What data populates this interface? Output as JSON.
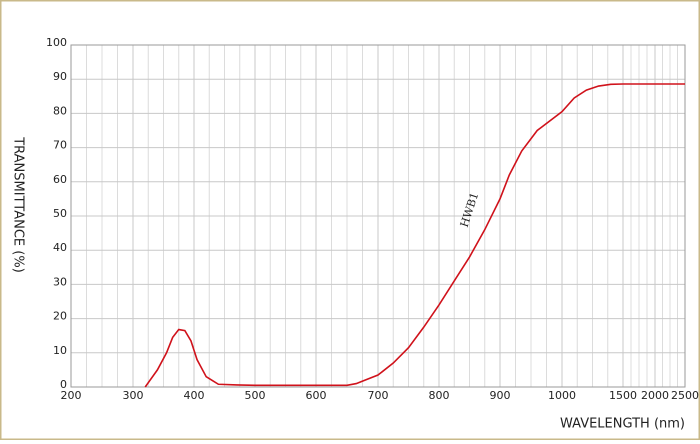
{
  "chart_data": {
    "type": "line",
    "x_label": "WAVELENGTH (nm)",
    "y_label": "TRANSMITTANCE  (%)",
    "annotation": "HWB1",
    "xlim": [
      200,
      2500
    ],
    "ylim": [
      0,
      100
    ],
    "xticks": [
      200,
      300,
      400,
      500,
      600,
      700,
      800,
      900,
      1000,
      1500,
      2000,
      2500
    ],
    "yticks": [
      0,
      10,
      20,
      30,
      40,
      50,
      60,
      70,
      80,
      90,
      100
    ],
    "grid": true,
    "series": [
      {
        "name": "HWB1",
        "color": "#d0121b",
        "x": [
          320,
          340,
          355,
          365,
          375,
          385,
          395,
          405,
          420,
          440,
          470,
          500,
          600,
          650,
          665,
          700,
          725,
          750,
          775,
          800,
          825,
          850,
          875,
          900,
          915,
          935,
          960,
          1000,
          1100,
          1200,
          1300,
          1400,
          1500,
          2000,
          2500
        ],
        "values": [
          0,
          5,
          10,
          14.5,
          16.8,
          16.5,
          13.5,
          8,
          3,
          0.8,
          0.6,
          0.5,
          0.5,
          0.5,
          1,
          3.5,
          7,
          11.5,
          17.5,
          24,
          31,
          38,
          46,
          55,
          62,
          69,
          75,
          80.5,
          84.5,
          86.8,
          88,
          88.5,
          88.6,
          88.6,
          88.6
        ]
      }
    ]
  }
}
